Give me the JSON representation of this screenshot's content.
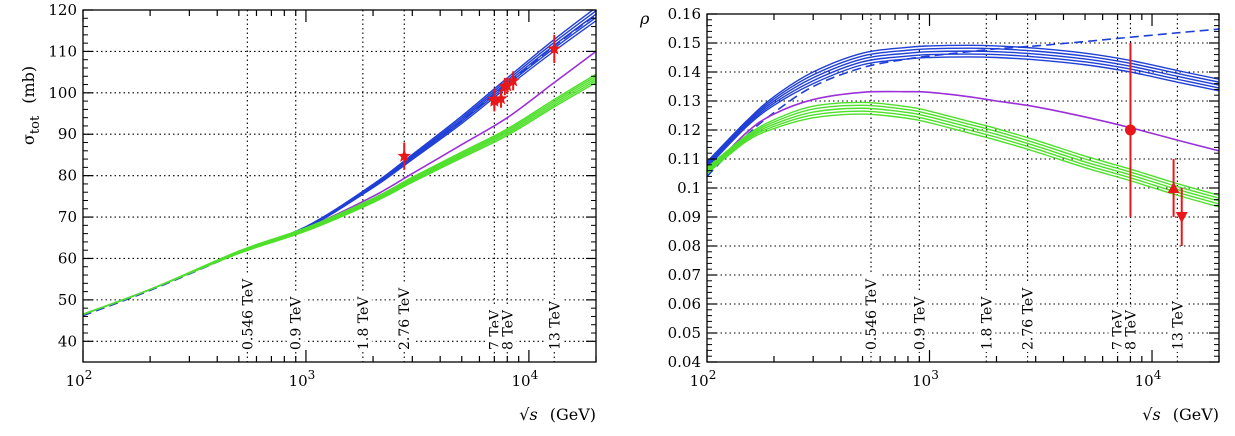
{
  "chart_data": [
    {
      "type": "line",
      "ylabel": "σ_tot  (mb)",
      "ylabel_main": "σ",
      "ylabel_sub": "tot",
      "ylabel_unit": "(mb)",
      "xlabel": "√s  (GeV)",
      "xlabel_sqrt": "√s",
      "xlabel_unit": "(GeV)",
      "x_scale": "log",
      "xlim": [
        100,
        20000
      ],
      "ylim": [
        35,
        120
      ],
      "x_ticks": [
        {
          "value": 100,
          "label": "10",
          "exp": "2"
        },
        {
          "value": 1000,
          "label": "10",
          "exp": "3"
        },
        {
          "value": 10000,
          "label": "10",
          "exp": "4"
        }
      ],
      "y_ticks": [
        {
          "value": 40,
          "label": "40"
        },
        {
          "value": 50,
          "label": "50"
        },
        {
          "value": 60,
          "label": "60"
        },
        {
          "value": 70,
          "label": "70"
        },
        {
          "value": 80,
          "label": "80"
        },
        {
          "value": 90,
          "label": "90"
        },
        {
          "value": 100,
          "label": "100"
        },
        {
          "value": 110,
          "label": "110"
        },
        {
          "value": 120,
          "label": "120"
        }
      ],
      "energy_lines": [
        {
          "x": 546,
          "label": "0.546 TeV"
        },
        {
          "x": 900,
          "label": "0.9 TeV"
        },
        {
          "x": 1800,
          "label": "1.8 TeV"
        },
        {
          "x": 2760,
          "label": "2.76 TeV"
        },
        {
          "x": 7000,
          "label": "7 TeV"
        },
        {
          "x": 8000,
          "label": "8 TeV"
        },
        {
          "x": 13000,
          "label": "13 TeV"
        }
      ],
      "series": [
        {
          "color": "#1f3fd6",
          "style": "band",
          "x": [
            100,
            200,
            500,
            1000,
            2000,
            3000,
            5000,
            8000,
            13000,
            20000
          ],
          "y": [
            46.5,
            52.5,
            61.5,
            67.5,
            77.5,
            84.5,
            93.5,
            102.5,
            111.5,
            119
          ],
          "spread": [
            0,
            0,
            0,
            0.2,
            0.4,
            0.6,
            0.9,
            1.1,
            1.4,
            1.6
          ]
        },
        {
          "color": "#1f3fd6",
          "style": "dashed",
          "x": [
            100,
            200,
            500,
            1000,
            2000,
            3000,
            5000,
            8000,
            13000,
            20000
          ],
          "y": [
            46.2,
            52.3,
            61.3,
            67.5,
            77.3,
            84.3,
            93.3,
            102.3,
            111.3,
            118.8
          ]
        },
        {
          "color": "#9b30d8",
          "style": "solid",
          "x": [
            100,
            200,
            500,
            1000,
            2000,
            3000,
            5000,
            8000,
            13000,
            20000
          ],
          "y": [
            46.5,
            52.5,
            61.5,
            67.3,
            75,
            80.5,
            87.5,
            94,
            102.5,
            110
          ]
        },
        {
          "color": "#4ee02a",
          "style": "band",
          "x": [
            100,
            200,
            500,
            1000,
            2000,
            3000,
            5000,
            8000,
            13000,
            20000
          ],
          "y": [
            46.5,
            52.5,
            61.5,
            67,
            74,
            79,
            85,
            90.5,
            97.5,
            103.5
          ],
          "spread": [
            0,
            0,
            0.3,
            0.4,
            0.5,
            0.6,
            0.7,
            0.8,
            0.9,
            1.0
          ]
        }
      ],
      "data_points": [
        {
          "x": 2760,
          "y": 84.7,
          "err": 3.3,
          "marker": "star"
        },
        {
          "x": 7000,
          "y": 98.0,
          "err": 2.5,
          "marker": "star"
        },
        {
          "x": 7000,
          "y": 98.5,
          "err": 2.5,
          "marker": "star"
        },
        {
          "x": 7500,
          "y": 98.6,
          "err": 2.2,
          "marker": "star"
        },
        {
          "x": 7800,
          "y": 101.5,
          "err": 2.1,
          "marker": "star"
        },
        {
          "x": 8000,
          "y": 101.7,
          "err": 2.0,
          "marker": "star"
        },
        {
          "x": 8500,
          "y": 102.9,
          "err": 2.3,
          "marker": "star"
        },
        {
          "x": 13000,
          "y": 110.6,
          "err": 3.4,
          "marker": "star"
        }
      ]
    },
    {
      "type": "line",
      "ylabel": "ρ",
      "xlabel": "√s  (GeV)",
      "xlabel_sqrt": "√s",
      "xlabel_unit": "(GeV)",
      "x_scale": "log",
      "xlim": [
        100,
        20000
      ],
      "ylim": [
        0.04,
        0.16
      ],
      "x_ticks": [
        {
          "value": 100,
          "label": "10",
          "exp": "2"
        },
        {
          "value": 1000,
          "label": "10",
          "exp": "3"
        },
        {
          "value": 10000,
          "label": "10",
          "exp": "4"
        }
      ],
      "y_ticks": [
        {
          "value": 0.04,
          "label": "0.04"
        },
        {
          "value": 0.05,
          "label": "0.05"
        },
        {
          "value": 0.06,
          "label": "0.06"
        },
        {
          "value": 0.07,
          "label": "0.07"
        },
        {
          "value": 0.08,
          "label": "0.08"
        },
        {
          "value": 0.09,
          "label": "0.09"
        },
        {
          "value": 0.1,
          "label": "0.1"
        },
        {
          "value": 0.11,
          "label": "0.11"
        },
        {
          "value": 0.12,
          "label": "0.12"
        },
        {
          "value": 0.13,
          "label": "0.13"
        },
        {
          "value": 0.14,
          "label": "0.14"
        },
        {
          "value": 0.15,
          "label": "0.15"
        },
        {
          "value": 0.16,
          "label": "0.16"
        }
      ],
      "energy_lines": [
        {
          "x": 546,
          "label": "0.546 TeV"
        },
        {
          "x": 900,
          "label": "0.9 TeV"
        },
        {
          "x": 1800,
          "label": "1.8 TeV"
        },
        {
          "x": 2760,
          "label": "2.76 TeV"
        },
        {
          "x": 7000,
          "label": "7 TeV"
        },
        {
          "x": 8000,
          "label": "8 TeV"
        },
        {
          "x": 13000,
          "label": "13 TeV"
        }
      ],
      "series": [
        {
          "color": "#1f3fd6",
          "style": "band",
          "x": [
            100,
            150,
            200,
            300,
            500,
            800,
            1000,
            1500,
            2000,
            3000,
            5000,
            8000,
            13000,
            20000
          ],
          "y": [
            0.108,
            0.122,
            0.13,
            0.138,
            0.1445,
            0.1465,
            0.147,
            0.1472,
            0.147,
            0.1462,
            0.1445,
            0.142,
            0.1385,
            0.1355
          ],
          "spread": [
            0.001,
            0.001,
            0.0015,
            0.002,
            0.002,
            0.002,
            0.002,
            0.002,
            0.002,
            0.002,
            0.002,
            0.002,
            0.002,
            0.002
          ]
        },
        {
          "color": "#1f3fd6",
          "style": "dashed",
          "x": [
            100,
            150,
            200,
            300,
            500,
            800,
            1000,
            1500,
            2000,
            3000,
            5000,
            8000,
            13000,
            20000
          ],
          "y": [
            0.104,
            0.118,
            0.126,
            0.135,
            0.1415,
            0.1445,
            0.1455,
            0.147,
            0.148,
            0.149,
            0.1505,
            0.152,
            0.1535,
            0.1548
          ]
        },
        {
          "color": "#9b30d8",
          "style": "solid",
          "x": [
            100,
            150,
            200,
            300,
            500,
            800,
            1000,
            1500,
            2000,
            3000,
            5000,
            8000,
            13000,
            20000
          ],
          "y": [
            0.105,
            0.119,
            0.1255,
            0.1305,
            0.133,
            0.1332,
            0.133,
            0.1315,
            0.13,
            0.128,
            0.1245,
            0.1208,
            0.1165,
            0.1128
          ]
        },
        {
          "color": "#4ee02a",
          "style": "band",
          "x": [
            100,
            150,
            200,
            300,
            500,
            800,
            1000,
            1500,
            2000,
            3000,
            5000,
            8000,
            13000,
            20000
          ],
          "y": [
            0.106,
            0.117,
            0.122,
            0.1262,
            0.1275,
            0.126,
            0.1245,
            0.121,
            0.1185,
            0.1145,
            0.109,
            0.1045,
            0.0995,
            0.0955
          ],
          "spread": [
            0.001,
            0.001,
            0.0015,
            0.002,
            0.002,
            0.002,
            0.002,
            0.002,
            0.002,
            0.002,
            0.002,
            0.002,
            0.002,
            0.002
          ]
        }
      ],
      "data_points": [
        {
          "x": 8000,
          "y": 0.12,
          "err_up": 0.03,
          "err_down": 0.03,
          "marker": "circle"
        },
        {
          "x": 12500,
          "y": 0.1,
          "err_up": 0.01,
          "err_down": 0.01,
          "marker": "triangle-up"
        },
        {
          "x": 13600,
          "y": 0.09,
          "err_up": 0.01,
          "err_down": 0.01,
          "marker": "triangle-down"
        }
      ]
    }
  ],
  "colors": {
    "data": "#e8181a",
    "grid": "#000000"
  }
}
